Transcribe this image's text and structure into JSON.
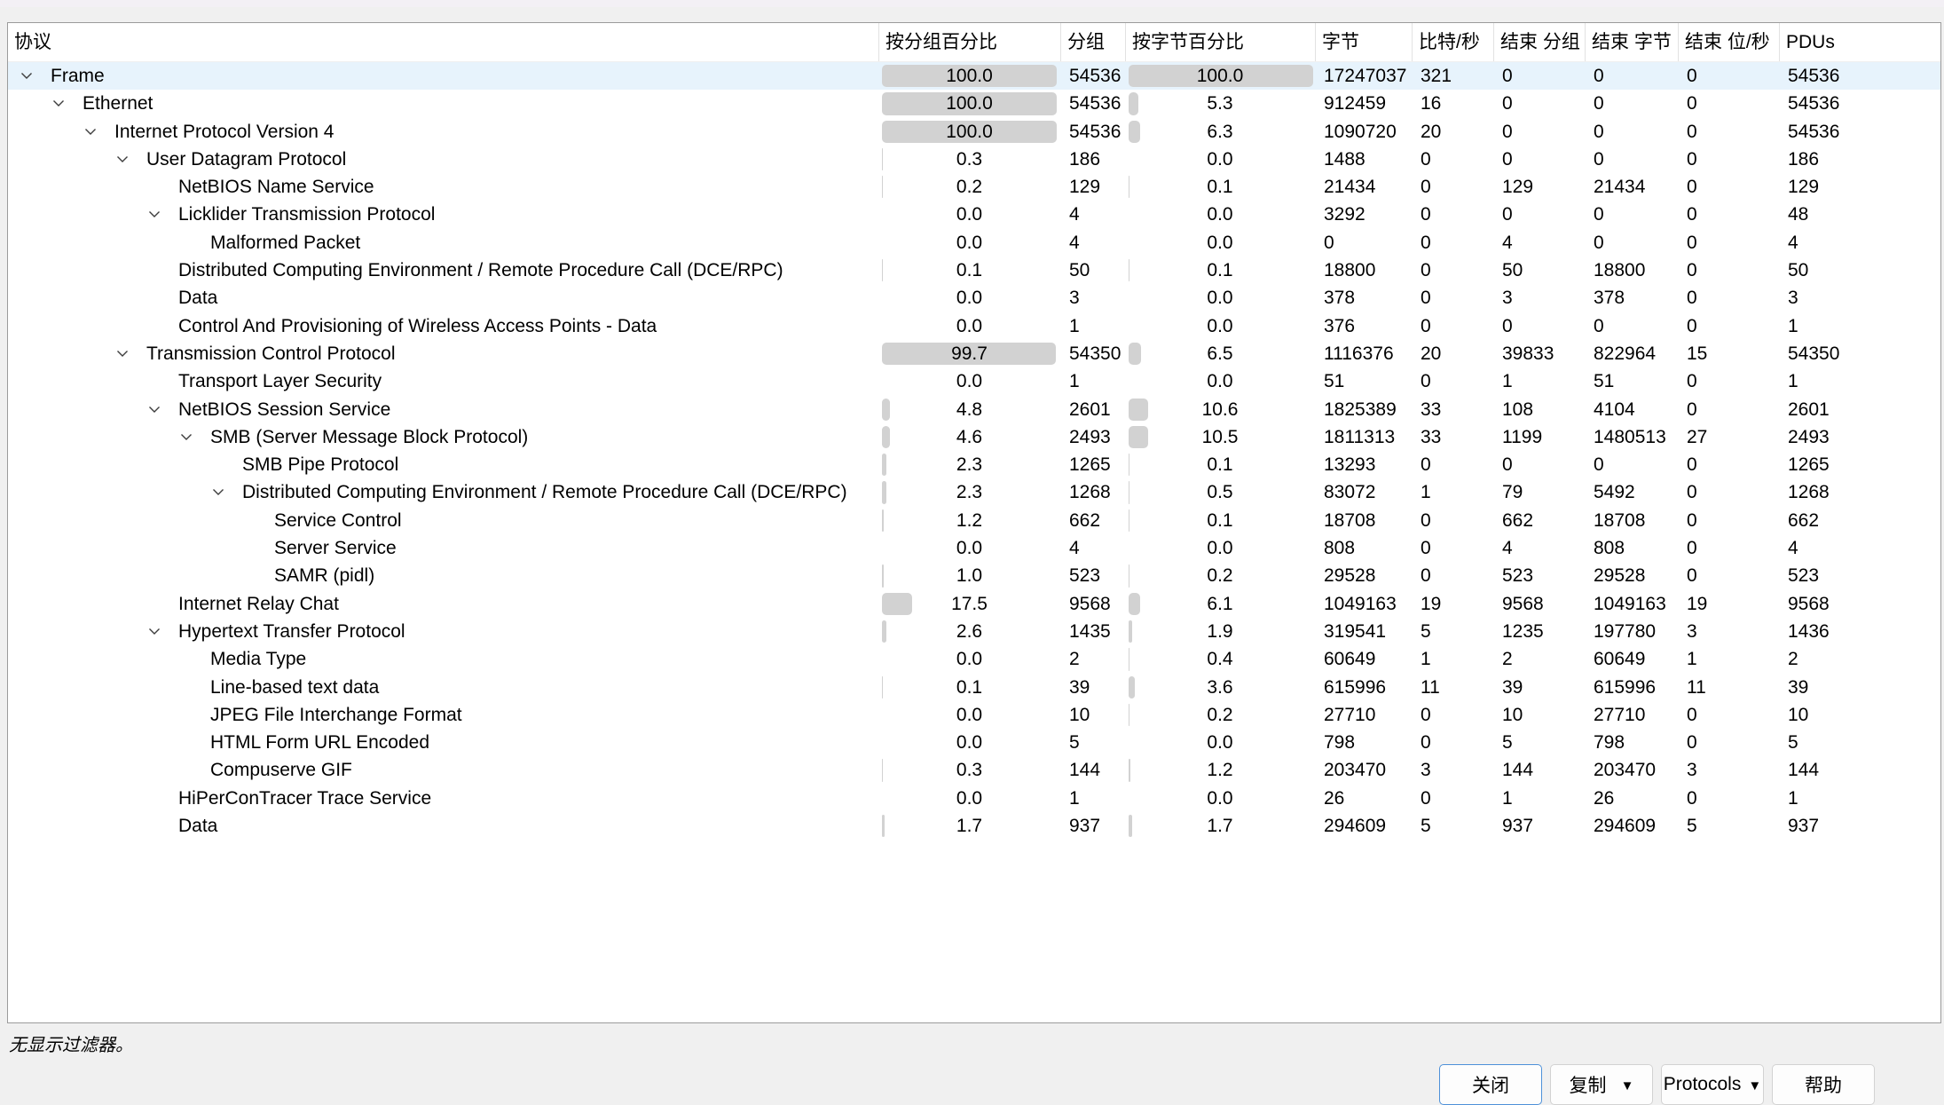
{
  "header": {
    "columns": [
      {
        "id": "protocol",
        "label": "协议"
      },
      {
        "id": "percent-packets",
        "label": "按分组百分比"
      },
      {
        "id": "packets",
        "label": "分组"
      },
      {
        "id": "percent-bytes",
        "label": "按字节百分比"
      },
      {
        "id": "bytes",
        "label": "字节"
      },
      {
        "id": "bits-per-s",
        "label": "比特/秒"
      },
      {
        "id": "end-packets",
        "label": "结束 分组"
      },
      {
        "id": "end-bytes",
        "label": "结束 字节"
      },
      {
        "id": "end-bits-per-s",
        "label": "结束 位/秒"
      },
      {
        "id": "pdus",
        "label": "PDUs"
      }
    ]
  },
  "rows": [
    {
      "name": "Frame",
      "level": 0,
      "expandable": true,
      "selected": true,
      "pct_packets": "100.0",
      "packets": "54536",
      "pct_bytes": "100.0",
      "bytes": "17247037",
      "bits_s": "321",
      "end_packets": "0",
      "end_bytes": "0",
      "end_bits_s": "0",
      "pdus": "54536"
    },
    {
      "name": "Ethernet",
      "level": 1,
      "expandable": true,
      "selected": false,
      "pct_packets": "100.0",
      "packets": "54536",
      "pct_bytes": "5.3",
      "bytes": "912459",
      "bits_s": "16",
      "end_packets": "0",
      "end_bytes": "0",
      "end_bits_s": "0",
      "pdus": "54536"
    },
    {
      "name": "Internet Protocol Version 4",
      "level": 2,
      "expandable": true,
      "selected": false,
      "pct_packets": "100.0",
      "packets": "54536",
      "pct_bytes": "6.3",
      "bytes": "1090720",
      "bits_s": "20",
      "end_packets": "0",
      "end_bytes": "0",
      "end_bits_s": "0",
      "pdus": "54536"
    },
    {
      "name": "User Datagram Protocol",
      "level": 3,
      "expandable": true,
      "selected": false,
      "pct_packets": "0.3",
      "packets": "186",
      "pct_bytes": "0.0",
      "bytes": "1488",
      "bits_s": "0",
      "end_packets": "0",
      "end_bytes": "0",
      "end_bits_s": "0",
      "pdus": "186"
    },
    {
      "name": "NetBIOS Name Service",
      "level": 4,
      "expandable": false,
      "selected": false,
      "pct_packets": "0.2",
      "packets": "129",
      "pct_bytes": "0.1",
      "bytes": "21434",
      "bits_s": "0",
      "end_packets": "129",
      "end_bytes": "21434",
      "end_bits_s": "0",
      "pdus": "129"
    },
    {
      "name": "Licklider Transmission Protocol",
      "level": 4,
      "expandable": true,
      "selected": false,
      "pct_packets": "0.0",
      "packets": "4",
      "pct_bytes": "0.0",
      "bytes": "3292",
      "bits_s": "0",
      "end_packets": "0",
      "end_bytes": "0",
      "end_bits_s": "0",
      "pdus": "48"
    },
    {
      "name": "Malformed Packet",
      "level": 5,
      "expandable": false,
      "selected": false,
      "pct_packets": "0.0",
      "packets": "4",
      "pct_bytes": "0.0",
      "bytes": "0",
      "bits_s": "0",
      "end_packets": "4",
      "end_bytes": "0",
      "end_bits_s": "0",
      "pdus": "4"
    },
    {
      "name": "Distributed Computing Environment / Remote Procedure Call (DCE/RPC)",
      "level": 4,
      "expandable": false,
      "selected": false,
      "pct_packets": "0.1",
      "packets": "50",
      "pct_bytes": "0.1",
      "bytes": "18800",
      "bits_s": "0",
      "end_packets": "50",
      "end_bytes": "18800",
      "end_bits_s": "0",
      "pdus": "50"
    },
    {
      "name": "Data",
      "level": 4,
      "expandable": false,
      "selected": false,
      "pct_packets": "0.0",
      "packets": "3",
      "pct_bytes": "0.0",
      "bytes": "378",
      "bits_s": "0",
      "end_packets": "3",
      "end_bytes": "378",
      "end_bits_s": "0",
      "pdus": "3"
    },
    {
      "name": "Control And Provisioning of Wireless Access Points - Data",
      "level": 4,
      "expandable": false,
      "selected": false,
      "pct_packets": "0.0",
      "packets": "1",
      "pct_bytes": "0.0",
      "bytes": "376",
      "bits_s": "0",
      "end_packets": "0",
      "end_bytes": "0",
      "end_bits_s": "0",
      "pdus": "1"
    },
    {
      "name": "Transmission Control Protocol",
      "level": 3,
      "expandable": true,
      "selected": false,
      "pct_packets": "99.7",
      "packets": "54350",
      "pct_bytes": "6.5",
      "bytes": "1116376",
      "bits_s": "20",
      "end_packets": "39833",
      "end_bytes": "822964",
      "end_bits_s": "15",
      "pdus": "54350"
    },
    {
      "name": "Transport Layer Security",
      "level": 4,
      "expandable": false,
      "selected": false,
      "pct_packets": "0.0",
      "packets": "1",
      "pct_bytes": "0.0",
      "bytes": "51",
      "bits_s": "0",
      "end_packets": "1",
      "end_bytes": "51",
      "end_bits_s": "0",
      "pdus": "1"
    },
    {
      "name": "NetBIOS Session Service",
      "level": 4,
      "expandable": true,
      "selected": false,
      "pct_packets": "4.8",
      "packets": "2601",
      "pct_bytes": "10.6",
      "bytes": "1825389",
      "bits_s": "33",
      "end_packets": "108",
      "end_bytes": "4104",
      "end_bits_s": "0",
      "pdus": "2601"
    },
    {
      "name": "SMB (Server Message Block Protocol)",
      "level": 5,
      "expandable": true,
      "selected": false,
      "pct_packets": "4.6",
      "packets": "2493",
      "pct_bytes": "10.5",
      "bytes": "1811313",
      "bits_s": "33",
      "end_packets": "1199",
      "end_bytes": "1480513",
      "end_bits_s": "27",
      "pdus": "2493"
    },
    {
      "name": "SMB Pipe Protocol",
      "level": 6,
      "expandable": false,
      "selected": false,
      "pct_packets": "2.3",
      "packets": "1265",
      "pct_bytes": "0.1",
      "bytes": "13293",
      "bits_s": "0",
      "end_packets": "0",
      "end_bytes": "0",
      "end_bits_s": "0",
      "pdus": "1265"
    },
    {
      "name": "Distributed Computing Environment / Remote Procedure Call (DCE/RPC)",
      "level": 6,
      "expandable": true,
      "selected": false,
      "pct_packets": "2.3",
      "packets": "1268",
      "pct_bytes": "0.5",
      "bytes": "83072",
      "bits_s": "1",
      "end_packets": "79",
      "end_bytes": "5492",
      "end_bits_s": "0",
      "pdus": "1268"
    },
    {
      "name": "Service Control",
      "level": 7,
      "expandable": false,
      "selected": false,
      "pct_packets": "1.2",
      "packets": "662",
      "pct_bytes": "0.1",
      "bytes": "18708",
      "bits_s": "0",
      "end_packets": "662",
      "end_bytes": "18708",
      "end_bits_s": "0",
      "pdus": "662"
    },
    {
      "name": "Server Service",
      "level": 7,
      "expandable": false,
      "selected": false,
      "pct_packets": "0.0",
      "packets": "4",
      "pct_bytes": "0.0",
      "bytes": "808",
      "bits_s": "0",
      "end_packets": "4",
      "end_bytes": "808",
      "end_bits_s": "0",
      "pdus": "4"
    },
    {
      "name": "SAMR (pidl)",
      "level": 7,
      "expandable": false,
      "selected": false,
      "pct_packets": "1.0",
      "packets": "523",
      "pct_bytes": "0.2",
      "bytes": "29528",
      "bits_s": "0",
      "end_packets": "523",
      "end_bytes": "29528",
      "end_bits_s": "0",
      "pdus": "523"
    },
    {
      "name": "Internet Relay Chat",
      "level": 4,
      "expandable": false,
      "selected": false,
      "pct_packets": "17.5",
      "packets": "9568",
      "pct_bytes": "6.1",
      "bytes": "1049163",
      "bits_s": "19",
      "end_packets": "9568",
      "end_bytes": "1049163",
      "end_bits_s": "19",
      "pdus": "9568"
    },
    {
      "name": "Hypertext Transfer Protocol",
      "level": 4,
      "expandable": true,
      "selected": false,
      "pct_packets": "2.6",
      "packets": "1435",
      "pct_bytes": "1.9",
      "bytes": "319541",
      "bits_s": "5",
      "end_packets": "1235",
      "end_bytes": "197780",
      "end_bits_s": "3",
      "pdus": "1436"
    },
    {
      "name": "Media Type",
      "level": 5,
      "expandable": false,
      "selected": false,
      "pct_packets": "0.0",
      "packets": "2",
      "pct_bytes": "0.4",
      "bytes": "60649",
      "bits_s": "1",
      "end_packets": "2",
      "end_bytes": "60649",
      "end_bits_s": "1",
      "pdus": "2"
    },
    {
      "name": "Line-based text data",
      "level": 5,
      "expandable": false,
      "selected": false,
      "pct_packets": "0.1",
      "packets": "39",
      "pct_bytes": "3.6",
      "bytes": "615996",
      "bits_s": "11",
      "end_packets": "39",
      "end_bytes": "615996",
      "end_bits_s": "11",
      "pdus": "39"
    },
    {
      "name": "JPEG File Interchange Format",
      "level": 5,
      "expandable": false,
      "selected": false,
      "pct_packets": "0.0",
      "packets": "10",
      "pct_bytes": "0.2",
      "bytes": "27710",
      "bits_s": "0",
      "end_packets": "10",
      "end_bytes": "27710",
      "end_bits_s": "0",
      "pdus": "10"
    },
    {
      "name": "HTML Form URL Encoded",
      "level": 5,
      "expandable": false,
      "selected": false,
      "pct_packets": "0.0",
      "packets": "5",
      "pct_bytes": "0.0",
      "bytes": "798",
      "bits_s": "0",
      "end_packets": "5",
      "end_bytes": "798",
      "end_bits_s": "0",
      "pdus": "5"
    },
    {
      "name": "Compuserve GIF",
      "level": 5,
      "expandable": false,
      "selected": false,
      "pct_packets": "0.3",
      "packets": "144",
      "pct_bytes": "1.2",
      "bytes": "203470",
      "bits_s": "3",
      "end_packets": "144",
      "end_bytes": "203470",
      "end_bits_s": "3",
      "pdus": "144"
    },
    {
      "name": "HiPerConTracer Trace Service",
      "level": 4,
      "expandable": false,
      "selected": false,
      "pct_packets": "0.0",
      "packets": "1",
      "pct_bytes": "0.0",
      "bytes": "26",
      "bits_s": "0",
      "end_packets": "1",
      "end_bytes": "26",
      "end_bits_s": "0",
      "pdus": "1"
    },
    {
      "name": "Data",
      "level": 4,
      "expandable": false,
      "selected": false,
      "pct_packets": "1.7",
      "packets": "937",
      "pct_bytes": "1.7",
      "bytes": "294609",
      "bits_s": "5",
      "end_packets": "937",
      "end_bytes": "294609",
      "end_bits_s": "5",
      "pdus": "937"
    }
  ],
  "status": {
    "filter_note": "无显示过滤器。"
  },
  "buttons": {
    "close": "关闭",
    "copy": "复制",
    "protocols": "Protocols",
    "help": "帮助"
  },
  "colors": {
    "selected_row": "#e7f3fc",
    "percent_bar": "#d2d2d2",
    "close_button_border": "#4e91d9",
    "dialog_background": "#f0f0f0"
  }
}
